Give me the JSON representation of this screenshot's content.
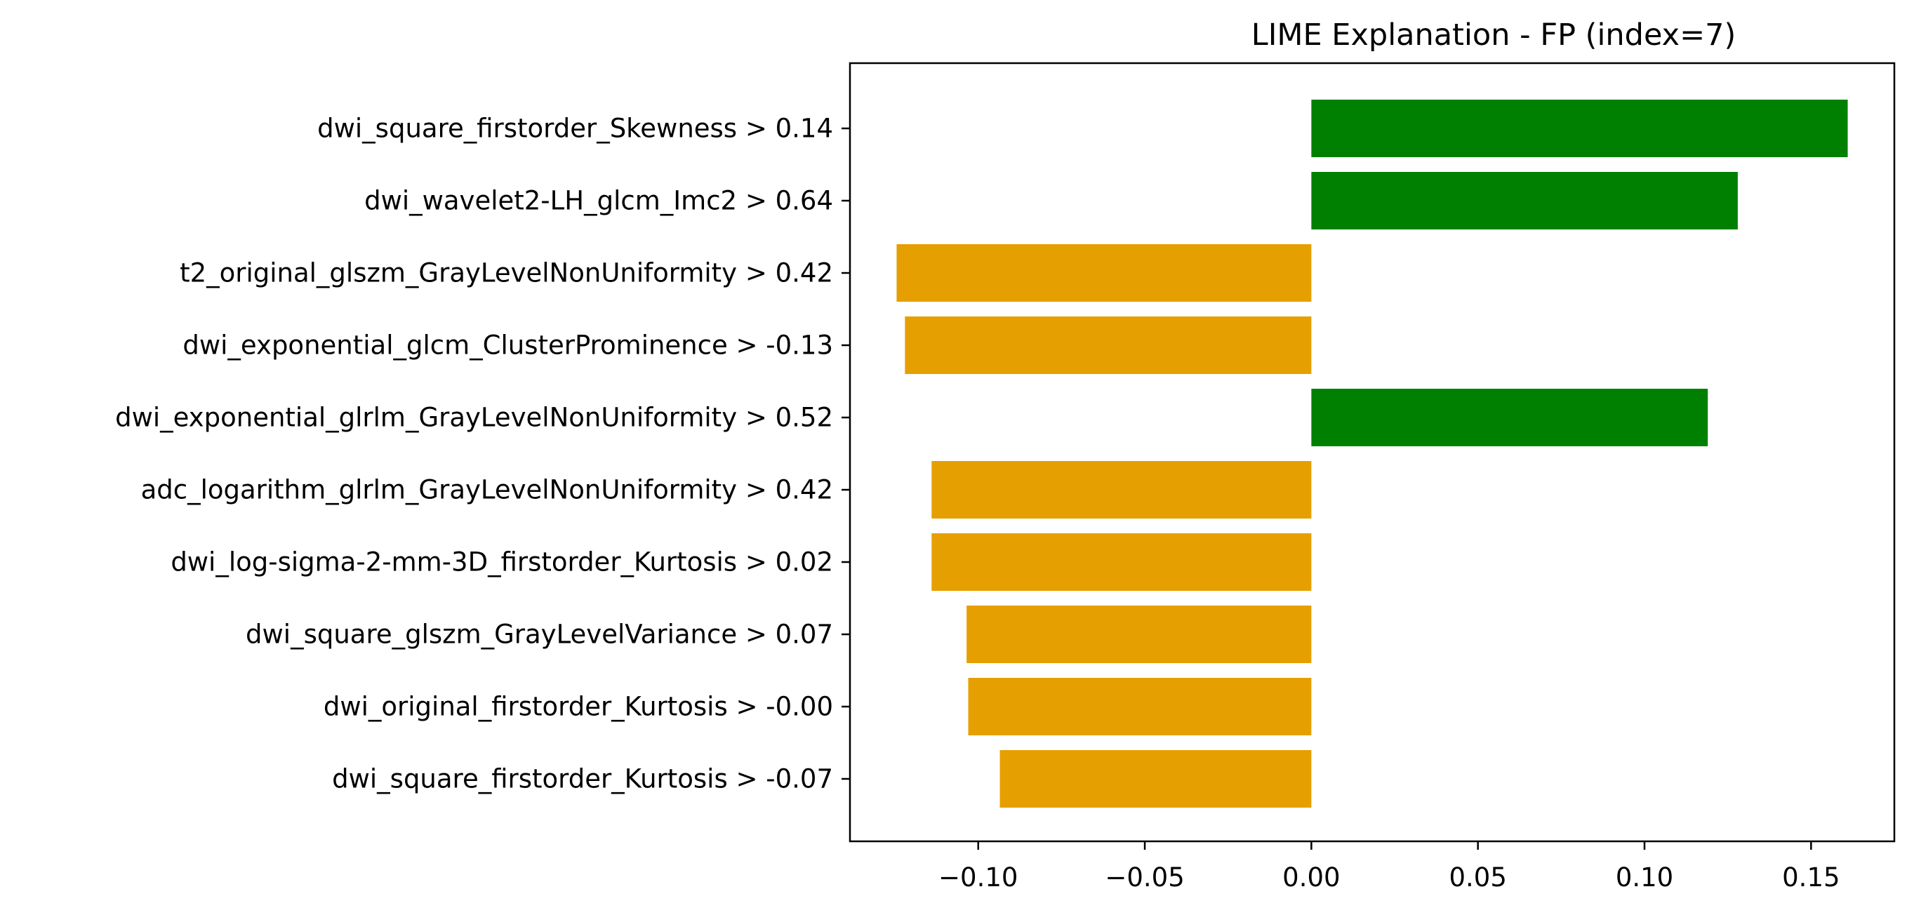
{
  "chart_data": {
    "type": "bar",
    "orientation": "horizontal",
    "title": "LIME Explanation - FP (index=7)",
    "xlabel": "",
    "ylabel": "",
    "categories": [
      "dwi_square_firstorder_Skewness > 0.14",
      "dwi_wavelet2-LH_glcm_Imc2 > 0.64",
      "t2_original_glszm_GrayLevelNonUniformity > 0.42",
      "dwi_exponential_glcm_ClusterProminence > -0.13",
      "dwi_exponential_glrlm_GrayLevelNonUniformity > 0.52",
      "adc_logarithm_glrlm_GrayLevelNonUniformity > 0.42",
      "dwi_log-sigma-2-mm-3D_firstorder_Kurtosis > 0.02",
      "dwi_square_glszm_GrayLevelVariance > 0.07",
      "dwi_original_firstorder_Kurtosis > -0.00",
      "dwi_square_firstorder_Kurtosis > -0.07"
    ],
    "values": [
      0.161,
      0.128,
      -0.1245,
      -0.122,
      0.119,
      -0.114,
      -0.114,
      -0.1035,
      -0.103,
      -0.0935
    ],
    "xlim": [
      -0.1385,
      0.175
    ],
    "xticks": [
      -0.1,
      -0.05,
      0.0,
      0.05,
      0.1,
      0.15
    ],
    "xtick_labels": [
      "−0.10",
      "−0.05",
      "0.00",
      "0.05",
      "0.10",
      "0.15"
    ],
    "colors": {
      "positive": "#008000",
      "negative": "#e69f00",
      "axes": "#000000",
      "background": "#ffffff"
    },
    "grid": false,
    "legend": "none"
  }
}
